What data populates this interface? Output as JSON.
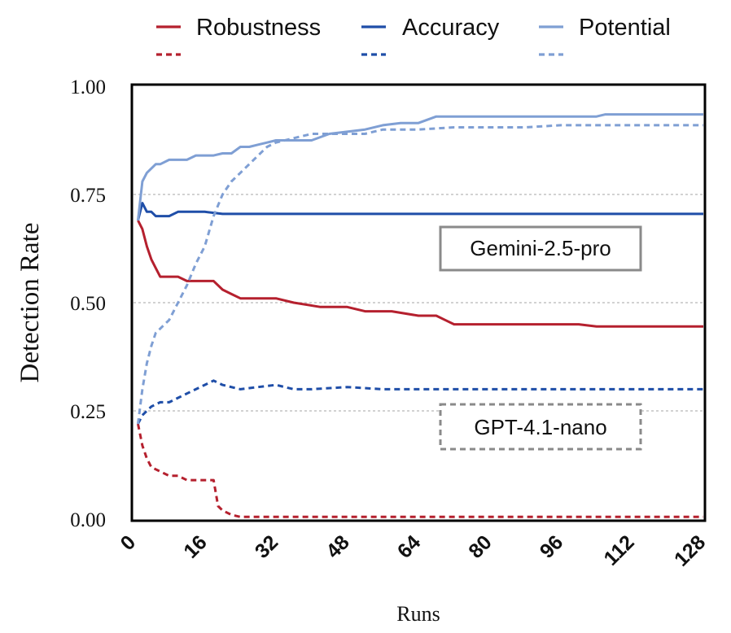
{
  "chart_data": {
    "type": "line",
    "xlabel": "Runs",
    "ylabel": "Detection Rate",
    "xlim": [
      0,
      128
    ],
    "ylim": [
      0,
      1
    ],
    "xticks": [
      "0",
      "16",
      "32",
      "48",
      "64",
      "80",
      "96",
      "112",
      "128"
    ],
    "yticks": [
      "0.00",
      "0.25",
      "0.50",
      "0.75",
      "1.00"
    ],
    "grid": "horizontal dotted at 0.25, 0.50, 0.75",
    "legend_position": "top",
    "legend": [
      {
        "name": "Robustness",
        "color": "#b5202e"
      },
      {
        "name": "Accuracy",
        "color": "#1f4ea8"
      },
      {
        "name": "Potential",
        "color": "#7f9fd4"
      }
    ],
    "annotations": [
      {
        "text": "Gemini-2.5-pro",
        "style": "solid"
      },
      {
        "text": "GPT-4.1-nano",
        "style": "dashed"
      }
    ],
    "series": [
      {
        "name": "Robustness",
        "model": "Gemini-2.5-pro",
        "linestyle": "solid",
        "color": "#b5202e",
        "x": [
          1,
          2,
          3,
          4,
          5,
          6,
          8,
          10,
          12,
          14,
          16,
          18,
          20,
          22,
          24,
          32,
          36,
          42,
          48,
          52,
          58,
          64,
          68,
          70,
          72,
          80,
          100,
          104,
          128
        ],
        "y": [
          0.69,
          0.67,
          0.63,
          0.6,
          0.58,
          0.56,
          0.56,
          0.56,
          0.55,
          0.55,
          0.55,
          0.55,
          0.53,
          0.52,
          0.51,
          0.51,
          0.5,
          0.49,
          0.49,
          0.48,
          0.48,
          0.47,
          0.47,
          0.46,
          0.45,
          0.45,
          0.45,
          0.445,
          0.445
        ]
      },
      {
        "name": "Accuracy",
        "model": "Gemini-2.5-pro",
        "linestyle": "solid",
        "color": "#1f4ea8",
        "x": [
          1,
          2,
          3,
          4,
          5,
          6,
          8,
          10,
          12,
          14,
          16,
          20,
          24,
          32,
          40,
          48,
          56,
          64,
          80,
          96,
          112,
          128
        ],
        "y": [
          0.69,
          0.73,
          0.71,
          0.71,
          0.7,
          0.7,
          0.7,
          0.71,
          0.71,
          0.71,
          0.71,
          0.705,
          0.705,
          0.705,
          0.705,
          0.705,
          0.705,
          0.705,
          0.705,
          0.705,
          0.705,
          0.705
        ]
      },
      {
        "name": "Potential",
        "model": "Gemini-2.5-pro",
        "linestyle": "solid",
        "color": "#7f9fd4",
        "x": [
          1,
          2,
          3,
          4,
          5,
          6,
          8,
          10,
          12,
          14,
          16,
          18,
          20,
          22,
          24,
          26,
          28,
          30,
          32,
          36,
          40,
          44,
          48,
          52,
          56,
          60,
          64,
          68,
          72,
          80,
          96,
          104,
          106,
          112,
          128
        ],
        "y": [
          0.69,
          0.78,
          0.8,
          0.81,
          0.82,
          0.82,
          0.83,
          0.83,
          0.83,
          0.84,
          0.84,
          0.84,
          0.845,
          0.845,
          0.86,
          0.86,
          0.865,
          0.87,
          0.875,
          0.875,
          0.875,
          0.89,
          0.895,
          0.9,
          0.91,
          0.915,
          0.915,
          0.93,
          0.93,
          0.93,
          0.93,
          0.93,
          0.935,
          0.935,
          0.935
        ]
      },
      {
        "name": "Robustness",
        "model": "GPT-4.1-nano",
        "linestyle": "dashed",
        "color": "#b5202e",
        "x": [
          1,
          2,
          3,
          4,
          6,
          8,
          10,
          12,
          14,
          16,
          18,
          19,
          20,
          22,
          24,
          32,
          64,
          96,
          128
        ],
        "y": [
          0.22,
          0.17,
          0.14,
          0.12,
          0.11,
          0.1,
          0.1,
          0.09,
          0.09,
          0.09,
          0.09,
          0.03,
          0.02,
          0.01,
          0.005,
          0.005,
          0.005,
          0.005,
          0.005
        ]
      },
      {
        "name": "Accuracy",
        "model": "GPT-4.1-nano",
        "linestyle": "dashed",
        "color": "#1f4ea8",
        "x": [
          1,
          2,
          4,
          6,
          8,
          10,
          12,
          14,
          16,
          18,
          20,
          24,
          28,
          32,
          36,
          40,
          48,
          56,
          64,
          72,
          80,
          96,
          112,
          128
        ],
        "y": [
          0.22,
          0.24,
          0.26,
          0.27,
          0.27,
          0.28,
          0.29,
          0.3,
          0.31,
          0.32,
          0.31,
          0.3,
          0.305,
          0.31,
          0.3,
          0.3,
          0.305,
          0.3,
          0.3,
          0.3,
          0.3,
          0.3,
          0.3,
          0.3
        ]
      },
      {
        "name": "Potential",
        "model": "GPT-4.1-nano",
        "linestyle": "dashed",
        "color": "#7f9fd4",
        "x": [
          1,
          2,
          3,
          4,
          5,
          6,
          7,
          8,
          10,
          12,
          14,
          16,
          18,
          20,
          22,
          24,
          26,
          28,
          30,
          32,
          36,
          40,
          44,
          48,
          52,
          56,
          60,
          64,
          72,
          80,
          88,
          96,
          112,
          128
        ],
        "y": [
          0.22,
          0.3,
          0.36,
          0.4,
          0.43,
          0.44,
          0.45,
          0.46,
          0.5,
          0.54,
          0.59,
          0.63,
          0.7,
          0.75,
          0.78,
          0.8,
          0.82,
          0.84,
          0.86,
          0.87,
          0.88,
          0.89,
          0.89,
          0.89,
          0.89,
          0.9,
          0.9,
          0.9,
          0.905,
          0.905,
          0.905,
          0.91,
          0.91,
          0.91
        ]
      }
    ]
  }
}
